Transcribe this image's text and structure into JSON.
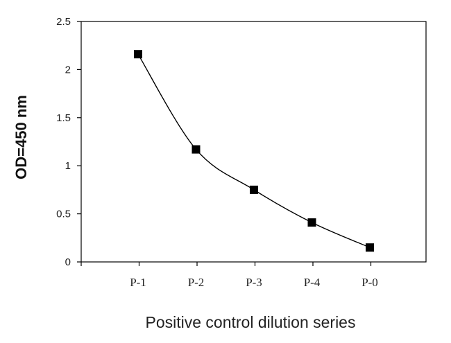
{
  "chart_data": {
    "type": "line",
    "categories": [
      "P-1",
      "P-2",
      "P-3",
      "P-4",
      "P-0"
    ],
    "values": [
      2.16,
      1.17,
      0.75,
      0.41,
      0.15
    ],
    "xlabel": "Positive control dilution series",
    "ylabel": "OD=450 nm",
    "ylim": [
      0,
      2.5
    ],
    "yticks": [
      "0",
      "0.5",
      "1",
      "1.5",
      "2",
      "2.5"
    ],
    "marker": "square",
    "line_style": "smooth",
    "grid": false,
    "legend": "none",
    "colors": {
      "line": "#000000",
      "marker": "#000000",
      "axis": "#000000"
    }
  }
}
